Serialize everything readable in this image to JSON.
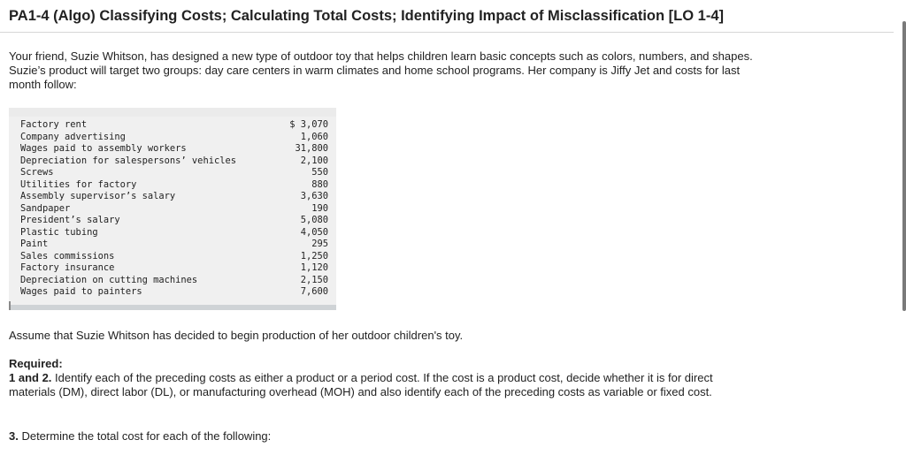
{
  "title": "PA1-4 (Algo) Classifying Costs; Calculating Total Costs; Identifying Impact of Misclassification [LO 1-4]",
  "intro": "Your friend, Suzie Whitson, has designed a new type of outdoor toy that helps children learn basic concepts such as colors, numbers, and shapes. Suzie’s product will target two groups: day care centers in warm climates and home school programs. Her company is Jiffy Jet and costs for last month follow:",
  "costs": [
    {
      "item": "Factory rent",
      "amount": "$ 3,070"
    },
    {
      "item": "Company advertising",
      "amount": "1,060"
    },
    {
      "item": "Wages paid to assembly workers",
      "amount": "31,800"
    },
    {
      "item": "Depreciation for salespersons’ vehicles",
      "amount": "2,100"
    },
    {
      "item": "Screws",
      "amount": "550"
    },
    {
      "item": "Utilities for factory",
      "amount": "880"
    },
    {
      "item": "Assembly supervisor’s salary",
      "amount": "3,630"
    },
    {
      "item": "Sandpaper",
      "amount": "190"
    },
    {
      "item": "President’s salary",
      "amount": "5,080"
    },
    {
      "item": "Plastic tubing",
      "amount": "4,050"
    },
    {
      "item": "Paint",
      "amount": "295"
    },
    {
      "item": "Sales commissions",
      "amount": "1,250"
    },
    {
      "item": "Factory insurance",
      "amount": "1,120"
    },
    {
      "item": "Depreciation on cutting machines",
      "amount": "2,150"
    },
    {
      "item": "Wages paid to painters",
      "amount": "7,600"
    }
  ],
  "assume": "Assume that Suzie Whitson has decided to begin production of her outdoor children's toy.",
  "required_label": "Required:",
  "req12_label": "1 and 2.",
  "req12_text": " Identify each of the preceding costs as either a product or a period cost. If the cost is a product cost, decide whether it is for direct materials (DM), direct labor (DL), or manufacturing overhead (MOH) and also identify each of the preceding costs as variable or fixed cost.",
  "req3_label": "3.",
  "req3_text": " Determine the total cost for each of the following:"
}
